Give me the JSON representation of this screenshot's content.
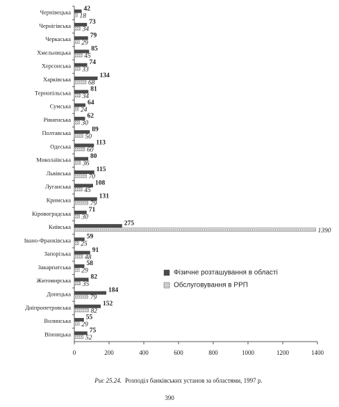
{
  "chart_data": {
    "type": "hbar",
    "categories": [
      "Чернівецька",
      "Чернігівська",
      "Черкаська",
      "Хмельницька",
      "Херсонська",
      "Харківська",
      "Тернопільська",
      "Сумська",
      "Рівненська",
      "Полтавська",
      "Одеська",
      "Миколаївська",
      "Львівська",
      "Луганська",
      "Кримська",
      "Кіровоградська",
      "Київська",
      "Івано-Франківська",
      "Запорізька",
      "Закарпатська",
      "Житомирська",
      "Донецька",
      "Дніпропетровська",
      "Волинська",
      "Вінницька"
    ],
    "series": [
      {
        "name": "Фізичне розташування в області",
        "color": "#4a4a4a",
        "values": [
          42,
          73,
          79,
          85,
          74,
          134,
          81,
          64,
          62,
          89,
          113,
          80,
          115,
          108,
          131,
          71,
          275,
          59,
          91,
          58,
          82,
          184,
          152,
          55,
          75
        ]
      },
      {
        "name": "Обслуговування в РРП",
        "color": "#bdbdbd",
        "values": [
          18,
          34,
          29,
          45,
          33,
          68,
          34,
          24,
          30,
          50,
          60,
          36,
          70,
          45,
          79,
          30,
          1390,
          25,
          48,
          29,
          35,
          79,
          82,
          29,
          52
        ]
      }
    ],
    "xlim": [
      0,
      1400
    ],
    "xticks": [
      0,
      200,
      400,
      600,
      800,
      1000,
      1200,
      1400
    ]
  },
  "page": {
    "caption_label": "Рис  25.24.",
    "caption": "Розподіл банківських установ за областями, 1997 р.",
    "page_number": "390"
  }
}
